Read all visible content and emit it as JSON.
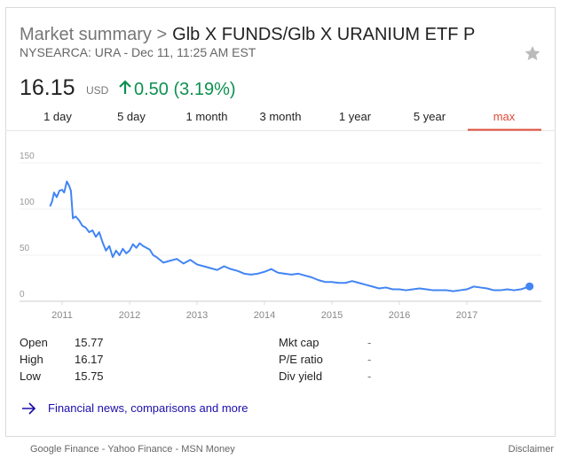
{
  "header": {
    "breadcrumb": "Market summary >",
    "title": "Glb X FUNDS/Glb X URANIUM ETF P",
    "subtitle": "NYSEARCA: URA - Dec 11, 11:25 AM EST"
  },
  "quote": {
    "price": 16.15,
    "currency": "USD",
    "change": "0.50 (3.19%)"
  },
  "tabs": {
    "items": [
      "1 day",
      "5 day",
      "1 month",
      "3 month",
      "1 year",
      "5 year",
      "max"
    ],
    "selected": 6
  },
  "chart_data": {
    "type": "line",
    "color": "#4285f4",
    "grid": true,
    "x": [
      2010.82,
      2010.85,
      2010.88,
      2010.92,
      2010.96,
      2011.0,
      2011.03,
      2011.07,
      2011.1,
      2011.13,
      2011.16,
      2011.2,
      2011.25,
      2011.3,
      2011.35,
      2011.4,
      2011.45,
      2011.5,
      2011.55,
      2011.6,
      2011.65,
      2011.7,
      2011.75,
      2011.8,
      2011.85,
      2011.9,
      2011.95,
      2012.0,
      2012.05,
      2012.1,
      2012.15,
      2012.2,
      2012.3,
      2012.35,
      2012.4,
      2012.5,
      2012.6,
      2012.7,
      2012.8,
      2012.9,
      2013.0,
      2013.1,
      2013.2,
      2013.3,
      2013.4,
      2013.5,
      2013.6,
      2013.7,
      2013.8,
      2013.9,
      2014.0,
      2014.1,
      2014.2,
      2014.3,
      2014.4,
      2014.5,
      2014.6,
      2014.7,
      2014.8,
      2014.9,
      2015.0,
      2015.1,
      2015.2,
      2015.3,
      2015.4,
      2015.5,
      2015.6,
      2015.7,
      2015.8,
      2015.9,
      2016.0,
      2016.1,
      2016.2,
      2016.3,
      2016.4,
      2016.5,
      2016.6,
      2016.7,
      2016.8,
      2016.9,
      2017.0,
      2017.1,
      2017.2,
      2017.3,
      2017.4,
      2017.5,
      2017.6,
      2017.7,
      2017.8,
      2017.93
    ],
    "values": [
      103,
      108,
      118,
      113,
      120,
      121,
      118,
      130,
      126,
      120,
      90,
      92,
      88,
      82,
      80,
      75,
      77,
      70,
      75,
      64,
      55,
      60,
      48,
      55,
      50,
      57,
      52,
      55,
      62,
      58,
      63,
      60,
      56,
      50,
      48,
      42,
      44,
      46,
      41,
      45,
      40,
      38,
      36,
      34,
      38,
      35,
      33,
      30,
      29,
      30,
      32,
      35,
      31,
      30,
      29,
      30,
      28,
      26,
      23,
      21,
      21,
      20,
      20,
      22,
      20,
      18,
      16,
      14,
      15,
      13,
      13,
      12,
      13,
      14,
      13,
      12,
      12,
      12,
      11,
      12,
      13,
      16,
      15,
      14,
      12,
      12,
      13,
      12,
      13,
      16.15
    ],
    "xlim": [
      2010.5,
      2018.1
    ],
    "xticks": [
      2011,
      2012,
      2013,
      2014,
      2015,
      2016,
      2017
    ],
    "ylim": [
      -4,
      163
    ],
    "yticks": [
      0,
      50,
      100,
      150
    ]
  },
  "stats": {
    "rows": [
      [
        "Open",
        15.77,
        "Mkt cap",
        "-"
      ],
      [
        "High",
        16.17,
        "P/E ratio",
        "-"
      ],
      [
        "Low",
        15.75,
        "Div yield",
        "-"
      ]
    ]
  },
  "link": "Financial news, comparisons and more",
  "footer": {
    "sources": "Google Finance - Yahoo Finance - MSN Money",
    "disclaimer": "Disclaimer"
  }
}
